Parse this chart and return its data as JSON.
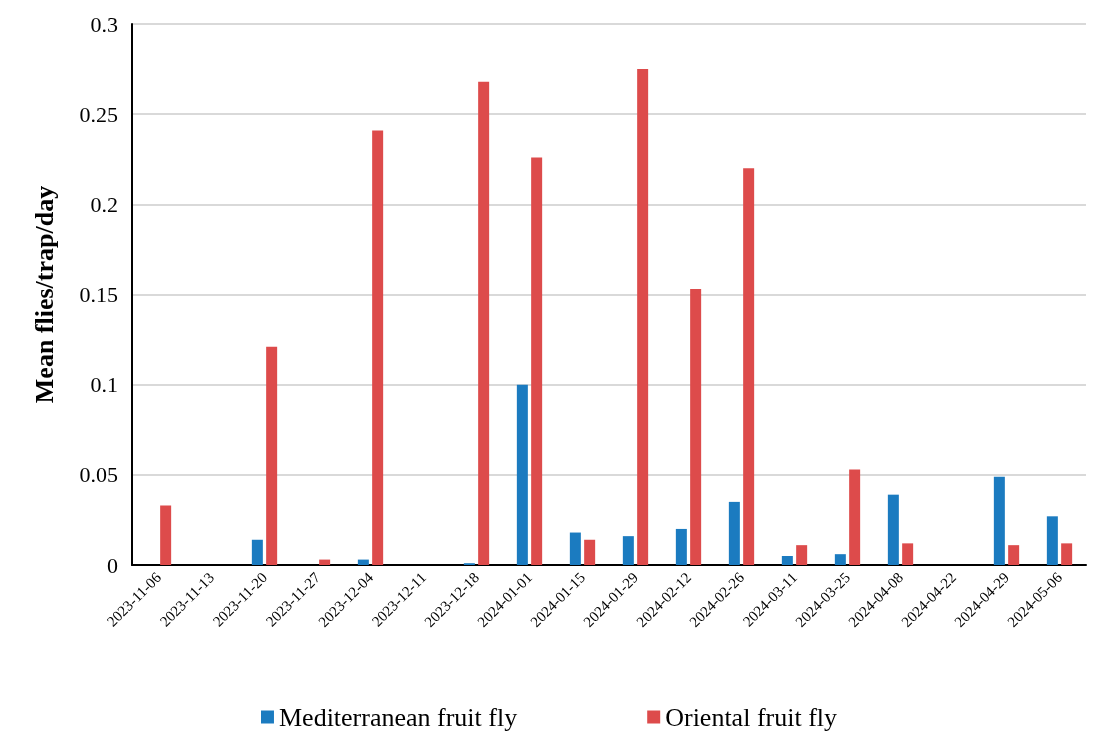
{
  "chart_data": {
    "type": "bar",
    "ylabel": "Mean flies/trap/day",
    "categories": [
      "2023-11-06",
      "2023-11-13",
      "2023-11-20",
      "2023-11-27",
      "2023-12-04",
      "2023-12-11",
      "2023-12-18",
      "2024-01-01",
      "2024-01-15",
      "2024-01-29",
      "2024-02-12",
      "2024-02-26",
      "2024-03-11",
      "2024-03-25",
      "2024-04-08",
      "2024-04-22",
      "2024-04-29",
      "2024-05-06"
    ],
    "series": [
      {
        "name": "Mediterranean fruit fly",
        "color": "#1b7bc0",
        "values": [
          0,
          0,
          0.014,
          0,
          0.003,
          0,
          0.001,
          0.1,
          0.018,
          0.016,
          0.02,
          0.035,
          0.005,
          0.006,
          0.039,
          0,
          0.049,
          0.027
        ]
      },
      {
        "name": "Oriental fruit fly",
        "color": "#dd4b4b",
        "values": [
          0.033,
          0,
          0.121,
          0.003,
          0.241,
          0,
          0.268,
          0.226,
          0.014,
          0.275,
          0.153,
          0.22,
          0.011,
          0.053,
          0.012,
          0,
          0.011,
          0.012
        ]
      }
    ],
    "ylim": [
      0,
      0.3
    ],
    "yticks": [
      0,
      0.05,
      0.1,
      0.15,
      0.2,
      0.25,
      0.3
    ],
    "grid": "y",
    "legend": "bottom"
  }
}
